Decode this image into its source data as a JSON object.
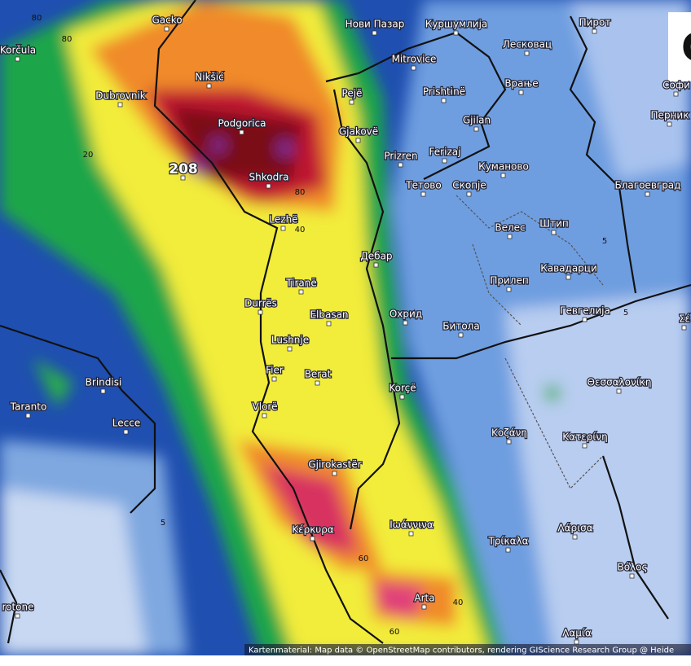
{
  "places": [
    {
      "label": "Gacko"
    },
    {
      "label": "Korčula"
    },
    {
      "label": "Nikšić"
    },
    {
      "label": "Dubrovnik"
    },
    {
      "label": "Podgorica"
    },
    {
      "label": "208"
    },
    {
      "label": "Shkodra"
    },
    {
      "label": "Lezhë"
    },
    {
      "label": "Нови Пазар"
    },
    {
      "label": "Куршумлија"
    },
    {
      "label": "Лесковац"
    },
    {
      "label": "Пирот"
    },
    {
      "label": "Mitrovice"
    },
    {
      "label": "Pejë"
    },
    {
      "label": "Prishtinë"
    },
    {
      "label": "Врање"
    },
    {
      "label": "Gjilan"
    },
    {
      "label": "Gjakovë"
    },
    {
      "label": "Prizren"
    },
    {
      "label": "Ferizaj"
    },
    {
      "label": "Куманово"
    },
    {
      "label": "Тетово"
    },
    {
      "label": "Скопје"
    },
    {
      "label": "Благоевград"
    },
    {
      "label": "Перник"
    },
    {
      "label": "Софи"
    },
    {
      "label": "Дебар"
    },
    {
      "label": "Велес"
    },
    {
      "label": "Штип"
    },
    {
      "label": "Кавадарци"
    },
    {
      "label": "Прилеп"
    },
    {
      "label": "Tiranë"
    },
    {
      "label": "Durrës"
    },
    {
      "label": "Elbasan"
    },
    {
      "label": "Охрид"
    },
    {
      "label": "Битола"
    },
    {
      "label": "Гевгелија"
    },
    {
      "label": "Lushnje"
    },
    {
      "label": "Fier"
    },
    {
      "label": "Berat"
    },
    {
      "label": "Korçë"
    },
    {
      "label": "Θεσσαλονίκη"
    },
    {
      "label": "Brindisi"
    },
    {
      "label": "Taranto"
    },
    {
      "label": "Lecce"
    },
    {
      "label": "Vlorë"
    },
    {
      "label": "Κοζάνη"
    },
    {
      "label": "Κατερίνη"
    },
    {
      "label": "Gjirokastër"
    },
    {
      "label": "Κέρκυρα"
    },
    {
      "label": "Ιωάννινα"
    },
    {
      "label": "Τρίκαλα"
    },
    {
      "label": "Λάρισα"
    },
    {
      "label": "Βόλος"
    },
    {
      "label": "Arta"
    },
    {
      "label": "Λαμία"
    },
    {
      "label": "rotone"
    },
    {
      "label": "Σέ"
    }
  ],
  "contours": [
    "80",
    "80",
    "20",
    "80",
    "40",
    "5",
    "5",
    "5",
    "60",
    "40",
    "60"
  ],
  "attribution": "Kartenmaterial: Map data © OpenStreetMap contributors, rendering GIScience Research Group @ Heide",
  "corner_label": "C"
}
